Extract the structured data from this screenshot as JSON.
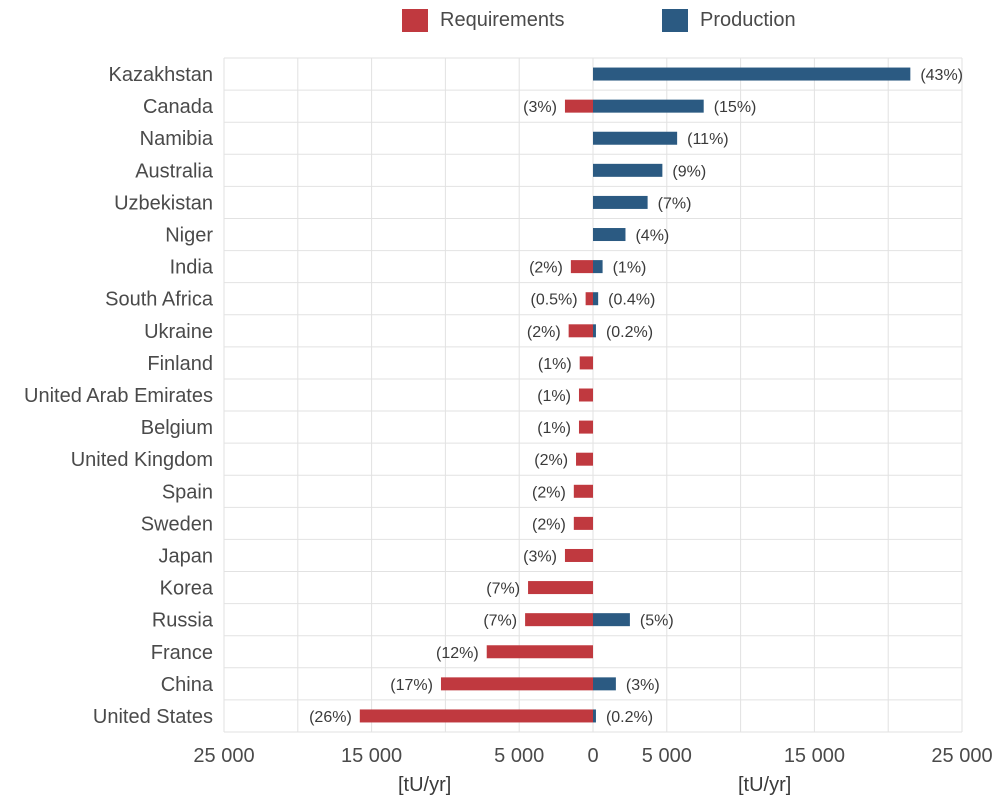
{
  "chart_data": {
    "type": "bar",
    "orientation": "horizontal",
    "diverging": true,
    "categories": [
      "Kazakhstan",
      "Canada",
      "Namibia",
      "Australia",
      "Uzbekistan",
      "Niger",
      "India",
      "South Africa",
      "Ukraine",
      "Finland",
      "United Arab Emirates",
      "Belgium",
      "United Kingdom",
      "Spain",
      "Sweden",
      "Japan",
      "Korea",
      "Russia",
      "France",
      "China",
      "United States"
    ],
    "series": [
      {
        "name": "Requirements",
        "color": "#c0393f",
        "direction": "left",
        "values": [
          0,
          1900,
          0,
          0,
          0,
          0,
          1500,
          500,
          1650,
          900,
          950,
          950,
          1150,
          1300,
          1300,
          1900,
          4400,
          4600,
          7200,
          10300,
          15800
        ],
        "labels": [
          "",
          "(3%)",
          "",
          "",
          "",
          "",
          "(2%)",
          "(0.5%)",
          "(2%)",
          "(1%)",
          "(1%)",
          "(1%)",
          "(2%)",
          "(2%)",
          "(2%)",
          "(3%)",
          "(7%)",
          "(7%)",
          "(12%)",
          "(17%)",
          "(26%)"
        ]
      },
      {
        "name": "Production",
        "color": "#2b5a82",
        "direction": "right",
        "values": [
          21500,
          7500,
          5700,
          4700,
          3700,
          2200,
          650,
          350,
          200,
          0,
          0,
          0,
          0,
          0,
          0,
          0,
          0,
          2500,
          0,
          1550,
          200
        ],
        "labels": [
          "(43%)",
          "(15%)",
          "(11%)",
          "(9%)",
          "(7%)",
          "(4%)",
          "(1%)",
          "(0.4%)",
          "(0.2%)",
          "",
          "",
          "",
          "",
          "",
          "",
          "",
          "",
          "(5%)",
          "",
          "(3%)",
          "(0.2%)"
        ]
      }
    ],
    "x_ticks": [
      {
        "value": -25000,
        "label": "25 000"
      },
      {
        "value": -15000,
        "label": "15 000"
      },
      {
        "value": -5000,
        "label": "5 000"
      },
      {
        "value": 0,
        "label": "0"
      },
      {
        "value": 5000,
        "label": "5 000"
      },
      {
        "value": 15000,
        "label": "15 000"
      },
      {
        "value": 25000,
        "label": "25 000"
      }
    ],
    "xlim": [
      -25000,
      25000
    ],
    "x_units_left": "[tU/yr]",
    "x_units_right": "[tU/yr]",
    "grid": true,
    "legend_position": "top-center"
  }
}
